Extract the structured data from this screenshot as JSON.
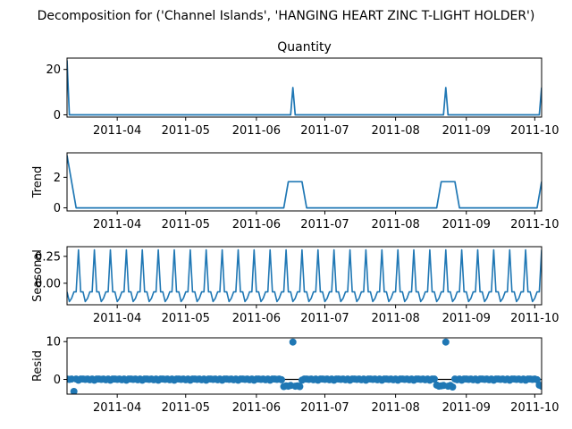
{
  "figure": {
    "suptitle": "Decomposition for ('Channel Islands', 'HANGING HEART ZINC T-LIGHT HOLDER')"
  },
  "x_tick_labels": [
    "2011-04",
    "2011-05",
    "2011-06",
    "2011-07",
    "2011-08",
    "2011-09",
    "2011-10"
  ],
  "chart_data": [
    {
      "type": "line",
      "title": "Quantity",
      "ylabel": "",
      "ylim": [
        -1,
        25
      ],
      "yticks": [
        "0",
        "20"
      ],
      "color": "#1f77b4",
      "x": [
        "2011-03-10",
        "2011-03-11",
        "2011-06-16",
        "2011-06-17",
        "2011-06-18",
        "2011-08-22",
        "2011-08-23",
        "2011-08-24",
        "2011-10-03",
        "2011-10-04"
      ],
      "y": [
        24,
        0,
        0,
        12,
        0,
        0,
        12,
        0,
        0,
        12
      ]
    },
    {
      "type": "line",
      "title": "",
      "ylabel": "Trend",
      "ylim": [
        -0.2,
        3.6
      ],
      "yticks": [
        "0",
        "2"
      ],
      "color": "#1f77b4",
      "x": [
        "2011-03-10",
        "2011-03-14",
        "2011-06-13",
        "2011-06-15",
        "2011-06-21",
        "2011-06-23",
        "2011-08-19",
        "2011-08-21",
        "2011-08-27",
        "2011-08-29",
        "2011-10-02",
        "2011-10-04"
      ],
      "y": [
        3.43,
        0,
        0,
        1.71,
        1.71,
        0,
        0,
        1.71,
        1.71,
        0,
        0,
        1.71
      ]
    },
    {
      "type": "line",
      "title": "",
      "ylabel": "Seasonal",
      "ylim": [
        -0.2,
        0.34
      ],
      "yticks": [
        "0.25",
        "0.00"
      ],
      "color": "#1f77b4",
      "period_days": 7,
      "pattern": [
        -0.08,
        -0.17,
        -0.14,
        -0.08,
        -0.08,
        0.31,
        -0.08
      ],
      "start": "2011-03-10",
      "end": "2011-10-04"
    },
    {
      "type": "scatter",
      "title": "",
      "ylabel": "Resid",
      "ylim": [
        -3.9,
        11
      ],
      "yticks": [
        "0",
        "10"
      ],
      "color": "#1f77b4",
      "zero_line": true,
      "start": "2011-03-10",
      "end": "2011-10-04",
      "baseline": [
        0.1,
        0.0,
        0.1,
        -0.1,
        0.1,
        -0.2,
        0.1
      ],
      "overrides": [
        [
          "2011-03-13",
          -3.2
        ],
        [
          "2011-06-13",
          -1.9
        ],
        [
          "2011-06-14",
          -1.7
        ],
        [
          "2011-06-15",
          -1.8
        ],
        [
          "2011-06-16",
          -1.6
        ],
        [
          "2011-06-17",
          9.9
        ],
        [
          "2011-06-18",
          -1.8
        ],
        [
          "2011-06-19",
          -1.7
        ],
        [
          "2011-06-20",
          -1.9
        ],
        [
          "2011-08-19",
          -1.5
        ],
        [
          "2011-08-20",
          -1.8
        ],
        [
          "2011-08-21",
          -1.7
        ],
        [
          "2011-08-22",
          -1.6
        ],
        [
          "2011-08-23",
          9.9
        ],
        [
          "2011-08-24",
          -1.8
        ],
        [
          "2011-08-25",
          -1.6
        ],
        [
          "2011-08-26",
          -2.0
        ],
        [
          "2011-10-03",
          -1.5
        ],
        [
          "2011-10-04",
          -1.8
        ]
      ]
    }
  ]
}
